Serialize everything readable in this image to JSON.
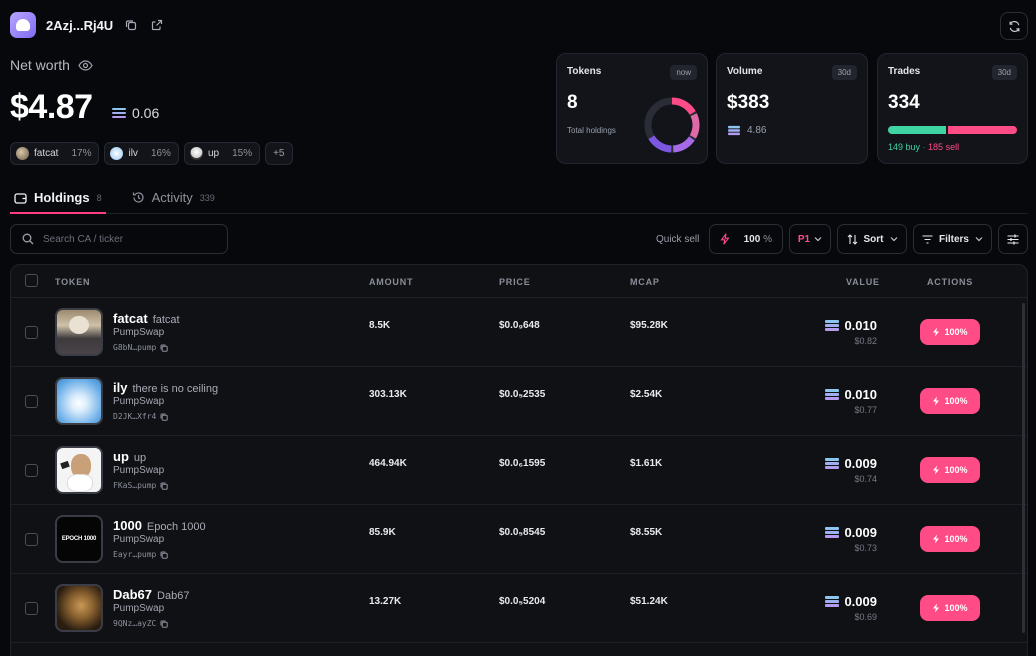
{
  "header": {
    "wallet_short": "2Azj...Rj4U",
    "net_worth_label": "Net worth",
    "net_worth": "$4.87",
    "sol_balance": "0.06"
  },
  "top_holdings": [
    {
      "name": "fatcat",
      "pct": "17%"
    },
    {
      "name": "ilv",
      "pct": "16%"
    },
    {
      "name": "up",
      "pct": "15%"
    },
    {
      "name": "+5",
      "pct": ""
    }
  ],
  "stats": {
    "tokens": {
      "title": "Tokens",
      "badge": "now",
      "value": "8",
      "sub": "Total holdings"
    },
    "volume": {
      "title": "Volume",
      "badge": "30d",
      "value": "$383",
      "sub": "4.86"
    },
    "trades": {
      "title": "Trades",
      "badge": "30d",
      "value": "334",
      "buy": "149 buy",
      "sell": "185 sell",
      "buy_fraction": 0.446
    }
  },
  "tabs": [
    {
      "label": "Holdings",
      "count": "8"
    },
    {
      "label": "Activity",
      "count": "339"
    }
  ],
  "toolbar": {
    "search_placeholder": "Search CA / ticker",
    "quick_sell_label": "Quick sell",
    "quick_sell_value": "100",
    "quick_sell_unit": "%",
    "preset": "P1",
    "sort_label": "Sort",
    "filters_label": "Filters"
  },
  "columns": [
    "TOKEN",
    "AMOUNT",
    "PRICE",
    "MCAP",
    "VALUE",
    "ACTIONS"
  ],
  "rows": [
    {
      "symbol": "fatcat",
      "name": "fatcat",
      "dex": "PumpSwap",
      "ca": "G8bN…pump",
      "amount": "8.5K",
      "price": "$0.0₉648",
      "mcap": "$95.28K",
      "value": "0.010",
      "usd": "$0.82",
      "action": "100%"
    },
    {
      "symbol": "ily",
      "name": "there is no ceiling",
      "dex": "PumpSwap",
      "ca": "D2JK…Xfr4",
      "amount": "303.13K",
      "price": "$0.0₅2535",
      "mcap": "$2.54K",
      "value": "0.010",
      "usd": "$0.77",
      "action": "100%"
    },
    {
      "symbol": "up",
      "name": "up",
      "dex": "PumpSwap",
      "ca": "FKaS…pump",
      "amount": "464.94K",
      "price": "$0.0₆1595",
      "mcap": "$1.61K",
      "value": "0.009",
      "usd": "$0.74",
      "action": "100%"
    },
    {
      "symbol": "1000",
      "name": "Epoch 1000",
      "dex": "PumpSwap",
      "ca": "Eayr…pump",
      "amount": "85.9K",
      "price": "$0.0₅8545",
      "mcap": "$8.55K",
      "value": "0.009",
      "usd": "$0.73",
      "action": "100%"
    },
    {
      "symbol": "Dab67",
      "name": "Dab67",
      "dex": "PumpSwap",
      "ca": "9QNz…ayZC",
      "amount": "13.27K",
      "price": "$0.0₅5204",
      "mcap": "$51.24K",
      "value": "0.009",
      "usd": "$0.69",
      "action": "100%"
    }
  ],
  "colors": {
    "accent": "#ff4b86",
    "buy": "#3fd4a2",
    "sell": "#ff4b86",
    "bg": "#07080b"
  }
}
